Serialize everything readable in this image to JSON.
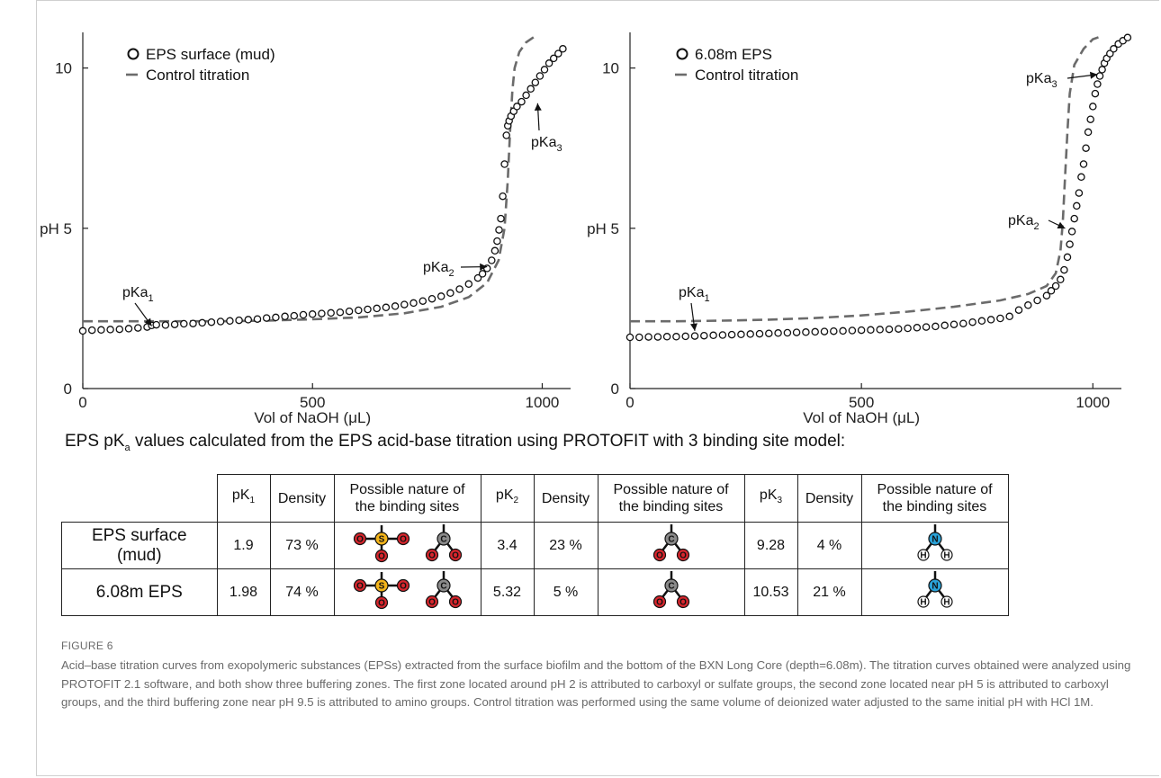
{
  "chart_data": [
    {
      "type": "scatter",
      "xlabel": "Vol of NaOH (μL)",
      "ylabel": "pH",
      "xlim": [
        0,
        1050
      ],
      "ylim": [
        0,
        11
      ],
      "x_ticks": [
        "0",
        "500",
        "1000"
      ],
      "y_ticks": [
        "0",
        "5",
        "10"
      ],
      "legend_position": "top-left",
      "series": [
        {
          "name": "EPS surface (mud)",
          "marker": "open-circle",
          "points": [
            [
              0,
              1.8
            ],
            [
              20,
              1.82
            ],
            [
              40,
              1.83
            ],
            [
              60,
              1.84
            ],
            [
              80,
              1.85
            ],
            [
              100,
              1.87
            ],
            [
              120,
              1.89
            ],
            [
              140,
              1.92
            ],
            [
              150,
              1.97
            ],
            [
              160,
              1.99
            ],
            [
              180,
              1.98
            ],
            [
              200,
              2.0
            ],
            [
              220,
              2.02
            ],
            [
              240,
              2.03
            ],
            [
              260,
              2.05
            ],
            [
              280,
              2.07
            ],
            [
              300,
              2.09
            ],
            [
              320,
              2.11
            ],
            [
              340,
              2.13
            ],
            [
              360,
              2.15
            ],
            [
              380,
              2.17
            ],
            [
              400,
              2.2
            ],
            [
              420,
              2.22
            ],
            [
              440,
              2.25
            ],
            [
              460,
              2.27
            ],
            [
              480,
              2.3
            ],
            [
              500,
              2.32
            ],
            [
              520,
              2.34
            ],
            [
              540,
              2.36
            ],
            [
              560,
              2.38
            ],
            [
              580,
              2.41
            ],
            [
              600,
              2.44
            ],
            [
              620,
              2.47
            ],
            [
              640,
              2.5
            ],
            [
              660,
              2.53
            ],
            [
              680,
              2.57
            ],
            [
              700,
              2.62
            ],
            [
              720,
              2.67
            ],
            [
              740,
              2.73
            ],
            [
              760,
              2.8
            ],
            [
              780,
              2.88
            ],
            [
              800,
              2.98
            ],
            [
              820,
              3.1
            ],
            [
              840,
              3.26
            ],
            [
              860,
              3.45
            ],
            [
              870,
              3.58
            ],
            [
              880,
              3.75
            ],
            [
              890,
              4.0
            ],
            [
              897,
              4.3
            ],
            [
              902,
              4.6
            ],
            [
              906,
              4.95
            ],
            [
              910,
              5.3
            ],
            [
              914,
              6.0
            ],
            [
              918,
              7.0
            ],
            [
              922,
              7.9
            ],
            [
              925,
              8.2
            ],
            [
              928,
              8.35
            ],
            [
              932,
              8.5
            ],
            [
              938,
              8.65
            ],
            [
              945,
              8.8
            ],
            [
              955,
              8.95
            ],
            [
              965,
              9.15
            ],
            [
              975,
              9.35
            ],
            [
              985,
              9.55
            ],
            [
              995,
              9.75
            ],
            [
              1005,
              9.95
            ],
            [
              1015,
              10.15
            ],
            [
              1025,
              10.3
            ],
            [
              1035,
              10.45
            ],
            [
              1045,
              10.6
            ]
          ]
        },
        {
          "name": "Control titration",
          "style": "dashed",
          "points": [
            [
              0,
              2.1
            ],
            [
              100,
              2.1
            ],
            [
              200,
              2.1
            ],
            [
              300,
              2.1
            ],
            [
              400,
              2.12
            ],
            [
              500,
              2.16
            ],
            [
              600,
              2.22
            ],
            [
              700,
              2.35
            ],
            [
              780,
              2.55
            ],
            [
              840,
              2.85
            ],
            [
              880,
              3.3
            ],
            [
              905,
              4.0
            ],
            [
              918,
              5.0
            ],
            [
              925,
              6.5
            ],
            [
              930,
              8.0
            ],
            [
              935,
              9.3
            ],
            [
              940,
              10.0
            ],
            [
              950,
              10.5
            ],
            [
              965,
              10.8
            ],
            [
              985,
              11.0
            ]
          ]
        }
      ],
      "annotations": [
        {
          "text": "pKa",
          "sub": "1",
          "at": [
            150,
            1.95
          ]
        },
        {
          "text": "pKa",
          "sub": "2",
          "at": [
            880,
            3.8
          ]
        },
        {
          "text": "pKa",
          "sub": "3",
          "at": [
            990,
            8.9
          ]
        }
      ]
    },
    {
      "type": "scatter",
      "xlabel": "Vol of NaOH (μL)",
      "ylabel": "pH",
      "xlim": [
        0,
        1050
      ],
      "ylim": [
        0,
        11
      ],
      "x_ticks": [
        "0",
        "500",
        "1000"
      ],
      "y_ticks": [
        "0",
        "5",
        "10"
      ],
      "legend_position": "top-left",
      "series": [
        {
          "name": "6.08m EPS",
          "marker": "open-circle",
          "points": [
            [
              0,
              1.6
            ],
            [
              20,
              1.6
            ],
            [
              40,
              1.61
            ],
            [
              60,
              1.61
            ],
            [
              80,
              1.62
            ],
            [
              100,
              1.62
            ],
            [
              120,
              1.63
            ],
            [
              140,
              1.64
            ],
            [
              160,
              1.65
            ],
            [
              180,
              1.66
            ],
            [
              200,
              1.67
            ],
            [
              220,
              1.68
            ],
            [
              240,
              1.69
            ],
            [
              260,
              1.7
            ],
            [
              280,
              1.71
            ],
            [
              300,
              1.72
            ],
            [
              320,
              1.73
            ],
            [
              340,
              1.74
            ],
            [
              360,
              1.75
            ],
            [
              380,
              1.76
            ],
            [
              400,
              1.77
            ],
            [
              420,
              1.78
            ],
            [
              440,
              1.79
            ],
            [
              460,
              1.8
            ],
            [
              480,
              1.81
            ],
            [
              500,
              1.82
            ],
            [
              520,
              1.83
            ],
            [
              540,
              1.84
            ],
            [
              560,
              1.85
            ],
            [
              580,
              1.86
            ],
            [
              600,
              1.88
            ],
            [
              620,
              1.9
            ],
            [
              640,
              1.92
            ],
            [
              660,
              1.94
            ],
            [
              680,
              1.97
            ],
            [
              700,
              2.0
            ],
            [
              720,
              2.03
            ],
            [
              740,
              2.07
            ],
            [
              760,
              2.11
            ],
            [
              780,
              2.15
            ],
            [
              800,
              2.19
            ],
            [
              820,
              2.25
            ],
            [
              840,
              2.45
            ],
            [
              860,
              2.6
            ],
            [
              880,
              2.75
            ],
            [
              900,
              2.9
            ],
            [
              910,
              3.05
            ],
            [
              920,
              3.2
            ],
            [
              930,
              3.4
            ],
            [
              938,
              3.7
            ],
            [
              945,
              4.1
            ],
            [
              950,
              4.5
            ],
            [
              955,
              4.9
            ],
            [
              960,
              5.3
            ],
            [
              965,
              5.7
            ],
            [
              970,
              6.1
            ],
            [
              975,
              6.6
            ],
            [
              980,
              7.0
            ],
            [
              985,
              7.5
            ],
            [
              990,
              8.0
            ],
            [
              995,
              8.4
            ],
            [
              1000,
              8.8
            ],
            [
              1005,
              9.2
            ],
            [
              1010,
              9.5
            ],
            [
              1015,
              9.75
            ],
            [
              1020,
              9.95
            ],
            [
              1025,
              10.15
            ],
            [
              1030,
              10.3
            ],
            [
              1037,
              10.45
            ],
            [
              1045,
              10.6
            ],
            [
              1055,
              10.75
            ],
            [
              1065,
              10.85
            ],
            [
              1075,
              10.95
            ]
          ]
        },
        {
          "name": "Control titration",
          "style": "dashed",
          "points": [
            [
              0,
              2.1
            ],
            [
              100,
              2.1
            ],
            [
              200,
              2.12
            ],
            [
              300,
              2.15
            ],
            [
              400,
              2.2
            ],
            [
              500,
              2.28
            ],
            [
              600,
              2.4
            ],
            [
              700,
              2.55
            ],
            [
              800,
              2.75
            ],
            [
              860,
              2.95
            ],
            [
              900,
              3.2
            ],
            [
              920,
              3.6
            ],
            [
              930,
              4.3
            ],
            [
              935,
              5.2
            ],
            [
              940,
              6.6
            ],
            [
              945,
              8.0
            ],
            [
              950,
              9.2
            ],
            [
              960,
              10.1
            ],
            [
              980,
              10.6
            ],
            [
              1000,
              10.9
            ],
            [
              1020,
              11.0
            ]
          ]
        }
      ],
      "annotations": [
        {
          "text": "pKa",
          "sub": "1",
          "at": [
            140,
            1.8
          ]
        },
        {
          "text": "pKa",
          "sub": "2",
          "at": [
            940,
            5.0
          ]
        },
        {
          "text": "pKa",
          "sub": "3",
          "at": [
            1010,
            9.8
          ]
        }
      ]
    }
  ],
  "table_caption": {
    "pre": "EPS pK",
    "sub": "a",
    "post": " values calculated from the EPS acid-base titration using PROTOFIT with 3 binding site model:"
  },
  "table": {
    "headers": {
      "pk_prefix": "pK",
      "pk1_sub": "1",
      "pk2_sub": "2",
      "pk3_sub": "3",
      "density": "Density",
      "nature": "Possible nature of the binding sites"
    },
    "rows": [
      {
        "label": "EPS surface (mud)",
        "pk1": "1.9",
        "d1": "73 %",
        "pk2": "3.4",
        "d2": "23 %",
        "pk3": "9.28",
        "d3": "4 %"
      },
      {
        "label": "6.08m EPS",
        "pk1": "1.98",
        "d1": "74 %",
        "pk2": "5.32",
        "d2": "5 %",
        "pk3": "10.53",
        "d3": "21 %"
      }
    ],
    "atoms": {
      "sulfur": "S",
      "carbon": "C",
      "oxygen": "O",
      "nitrogen": "N",
      "hydrogen": "H"
    }
  },
  "colors": {
    "oxygen": "#d7262d",
    "sulfur": "#f3b41b",
    "carbon": "#8a8a8a",
    "nitrogen": "#2aa2d8",
    "hydrogen": "#ffffff",
    "dashed_line": "#6b6b6b"
  },
  "figure_label": "FIGURE 6",
  "figure_caption": "Acid–base titration curves from exopolymeric substances (EPSs) extracted from the surface biofilm and the bottom of the BXN Long Core (depth=6.08m). The titration curves obtained were analyzed using PROTOFIT 2.1 software, and both show three buffering zones. The first zone located around pH 2 is attributed to carboxyl or sulfate groups, the second zone located near pH 5 is attributed to carboxyl groups, and the third buffering zone near pH 9.5 is attributed to amino groups. Control titration was performed using the same volume of deionized water adjusted to the same initial pH with HCl 1M."
}
